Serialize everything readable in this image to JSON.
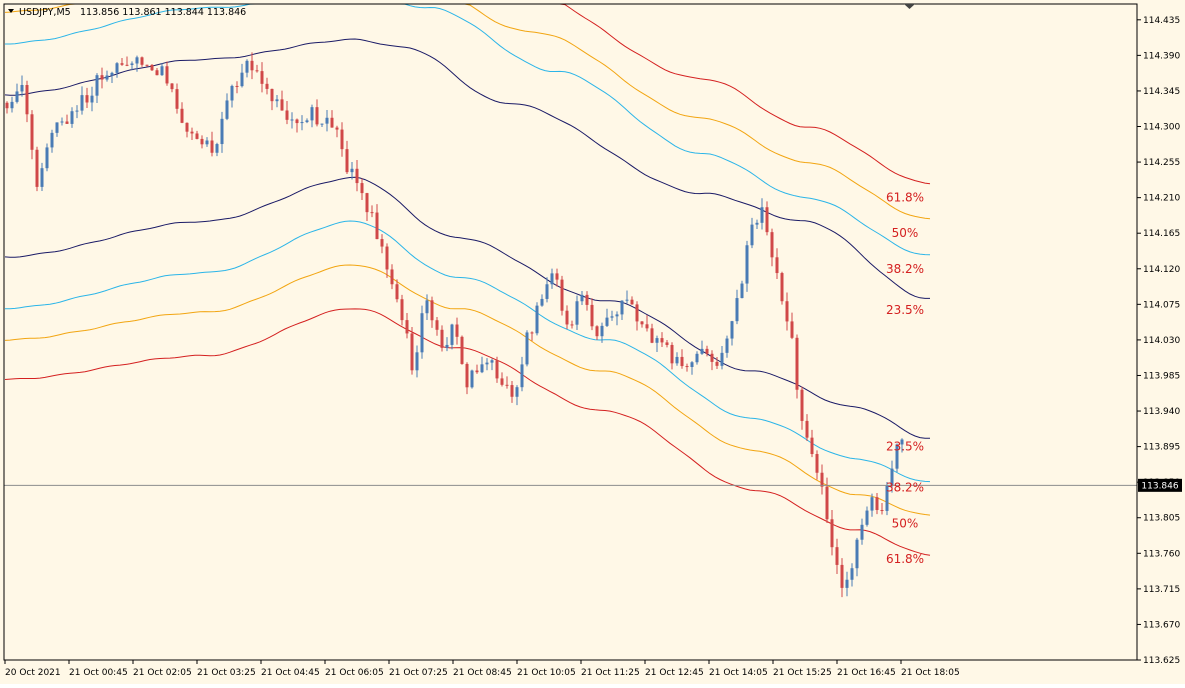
{
  "header": {
    "menu_icon": "triangle-down-icon",
    "symbol": "USDJPY,M5",
    "ohlc": "113.856 113.861 113.844 113.846"
  },
  "colors": {
    "background": "#FFF8E7",
    "frame": "#000000",
    "bull": "#4A7BB5",
    "bear": "#D04848",
    "band_1": "#1A1A66",
    "band_2": "#2BB5E8",
    "band_3": "#F2A511",
    "band_4": "#D42020",
    "fib_text": "#D42020",
    "current_line": "#8C8C8C"
  },
  "price_axis": {
    "current_price": "113.846"
  },
  "chart_data": {
    "type": "candlestick",
    "ylim": [
      113.625,
      114.455
    ],
    "y_ticks": [
      "114.435",
      "114.390",
      "114.345",
      "114.300",
      "114.255",
      "114.210",
      "114.165",
      "114.120",
      "114.075",
      "114.030",
      "113.985",
      "113.940",
      "113.895",
      "113.850",
      "113.805",
      "113.760",
      "113.715",
      "113.670",
      "113.625"
    ],
    "x_ticks": [
      "20 Oct 2021",
      "21 Oct 00:45",
      "21 Oct 02:05",
      "21 Oct 03:25",
      "21 Oct 04:45",
      "21 Oct 06:05",
      "21 Oct 07:25",
      "21 Oct 08:45",
      "21 Oct 10:05",
      "21 Oct 11:25",
      "21 Oct 12:45",
      "21 Oct 14:05",
      "21 Oct 15:25",
      "21 Oct 16:45",
      "21 Oct 18:05"
    ],
    "bars": 224,
    "current_price": 113.846,
    "price_path": [
      {
        "i": 0,
        "p": 114.33
      },
      {
        "i": 8,
        "p": 114.35
      },
      {
        "i": 14,
        "p": 114.23
      },
      {
        "i": 22,
        "p": 114.3
      },
      {
        "i": 32,
        "p": 114.33
      },
      {
        "i": 40,
        "p": 114.36
      },
      {
        "i": 50,
        "p": 114.385
      },
      {
        "i": 56,
        "p": 114.38
      },
      {
        "i": 64,
        "p": 114.37
      },
      {
        "i": 74,
        "p": 114.3
      },
      {
        "i": 84,
        "p": 114.275
      },
      {
        "i": 92,
        "p": 114.345
      },
      {
        "i": 100,
        "p": 114.38
      },
      {
        "i": 110,
        "p": 114.33
      },
      {
        "i": 118,
        "p": 114.305
      },
      {
        "i": 124,
        "p": 114.315
      },
      {
        "i": 132,
        "p": 114.3
      },
      {
        "i": 140,
        "p": 114.24
      },
      {
        "i": 146,
        "p": 114.2
      },
      {
        "i": 152,
        "p": 114.14
      },
      {
        "i": 160,
        "p": 114.06
      },
      {
        "i": 164,
        "p": 114.0
      },
      {
        "i": 170,
        "p": 114.08
      },
      {
        "i": 176,
        "p": 114.02
      },
      {
        "i": 180,
        "p": 114.04
      },
      {
        "i": 186,
        "p": 113.98
      },
      {
        "i": 194,
        "p": 114.0
      },
      {
        "i": 200,
        "p": 113.98
      },
      {
        "i": 205,
        "p": 113.955
      },
      {
        "i": 210,
        "p": 114.03
      },
      {
        "i": 216,
        "p": 114.08
      },
      {
        "i": 221,
        "p": 114.11
      },
      {
        "i": 226,
        "p": 114.05
      },
      {
        "i": 232,
        "p": 114.08
      },
      {
        "i": 238,
        "p": 114.04
      },
      {
        "i": 244,
        "p": 114.06
      },
      {
        "i": 250,
        "p": 114.08
      },
      {
        "i": 256,
        "p": 114.04
      },
      {
        "i": 262,
        "p": 114.03
      },
      {
        "i": 268,
        "p": 114.01
      },
      {
        "i": 274,
        "p": 113.995
      },
      {
        "i": 280,
        "p": 114.02
      },
      {
        "i": 286,
        "p": 114.0
      },
      {
        "i": 292,
        "p": 114.05
      },
      {
        "i": 296,
        "p": 114.1
      },
      {
        "i": 300,
        "p": 114.18
      },
      {
        "i": 304,
        "p": 114.19
      },
      {
        "i": 308,
        "p": 114.14
      },
      {
        "i": 312,
        "p": 114.08
      },
      {
        "i": 316,
        "p": 114.03
      },
      {
        "i": 320,
        "p": 113.92
      },
      {
        "i": 324,
        "p": 113.88
      },
      {
        "i": 328,
        "p": 113.84
      },
      {
        "i": 332,
        "p": 113.76
      },
      {
        "i": 336,
        "p": 113.72
      },
      {
        "i": 340,
        "p": 113.74
      },
      {
        "i": 344,
        "p": 113.8
      },
      {
        "i": 348,
        "p": 113.83
      },
      {
        "i": 352,
        "p": 113.81
      },
      {
        "i": 356,
        "p": 113.87
      },
      {
        "i": 360,
        "p": 113.91
      },
      {
        "i": 364,
        "p": 113.9
      },
      {
        "i": 368,
        "p": 113.88
      },
      {
        "i": 372,
        "p": 113.846
      }
    ],
    "bands": [
      {
        "level_labels": [
          "23.5%",
          "23.5%"
        ],
        "color_key": "band_1",
        "upper": [
          [
            0,
            114.34
          ],
          [
            80,
            114.385
          ],
          [
            140,
            114.41
          ],
          [
            160,
            114.4
          ],
          [
            200,
            114.33
          ],
          [
            280,
            114.215
          ],
          [
            320,
            114.18
          ],
          [
            370,
            114.082
          ]
        ],
        "lower": [
          [
            0,
            114.135
          ],
          [
            80,
            114.18
          ],
          [
            140,
            114.235
          ],
          [
            180,
            114.16
          ],
          [
            240,
            114.08
          ],
          [
            300,
            113.99
          ],
          [
            340,
            113.945
          ],
          [
            370,
            113.905
          ]
        ]
      },
      {
        "level_labels": [
          "38.2%",
          "38.2%"
        ],
        "color_key": "band_2",
        "upper": [
          [
            0,
            114.405
          ],
          [
            80,
            114.45
          ],
          [
            140,
            114.47
          ],
          [
            170,
            114.45
          ],
          [
            220,
            114.37
          ],
          [
            280,
            114.265
          ],
          [
            320,
            114.21
          ],
          [
            370,
            114.137
          ]
        ],
        "lower": [
          [
            0,
            114.07
          ],
          [
            80,
            114.115
          ],
          [
            140,
            114.18
          ],
          [
            180,
            114.11
          ],
          [
            240,
            114.03
          ],
          [
            300,
            113.93
          ],
          [
            340,
            113.88
          ],
          [
            370,
            113.85
          ]
        ]
      },
      {
        "level_labels": [
          "50%",
          "50%"
        ],
        "color_key": "band_3",
        "upper": [
          [
            0,
            114.445
          ],
          [
            80,
            114.48
          ],
          [
            160,
            114.49
          ],
          [
            210,
            114.42
          ],
          [
            280,
            114.31
          ],
          [
            320,
            114.255
          ],
          [
            370,
            114.183
          ]
        ],
        "lower": [
          [
            0,
            114.03
          ],
          [
            80,
            114.065
          ],
          [
            140,
            114.125
          ],
          [
            180,
            114.07
          ],
          [
            240,
            113.99
          ],
          [
            300,
            113.89
          ],
          [
            340,
            113.835
          ],
          [
            370,
            113.808
          ]
        ]
      },
      {
        "level_labels": [
          "61.8%",
          "61.8%"
        ],
        "color_key": "band_4",
        "upper": [
          [
            0,
            114.5
          ],
          [
            80,
            114.54
          ],
          [
            160,
            114.55
          ],
          [
            200,
            114.48
          ],
          [
            280,
            114.36
          ],
          [
            320,
            114.3
          ],
          [
            370,
            114.228
          ]
        ],
        "lower": [
          [
            0,
            113.98
          ],
          [
            80,
            114.01
          ],
          [
            140,
            114.07
          ],
          [
            180,
            114.02
          ],
          [
            240,
            113.94
          ],
          [
            300,
            113.84
          ],
          [
            340,
            113.79
          ],
          [
            370,
            113.758
          ]
        ]
      }
    ],
    "fib_labels": [
      {
        "text": "61.8%",
        "price": 114.21
      },
      {
        "text": "50%",
        "price": 114.165
      },
      {
        "text": "38.2%",
        "price": 114.12
      },
      {
        "text": "23.5%",
        "price": 114.068
      },
      {
        "text": "23.5%",
        "price": 113.895
      },
      {
        "text": "38.2%",
        "price": 113.843
      },
      {
        "text": "50%",
        "price": 113.798
      },
      {
        "text": "61.8%",
        "price": 113.753
      }
    ]
  }
}
